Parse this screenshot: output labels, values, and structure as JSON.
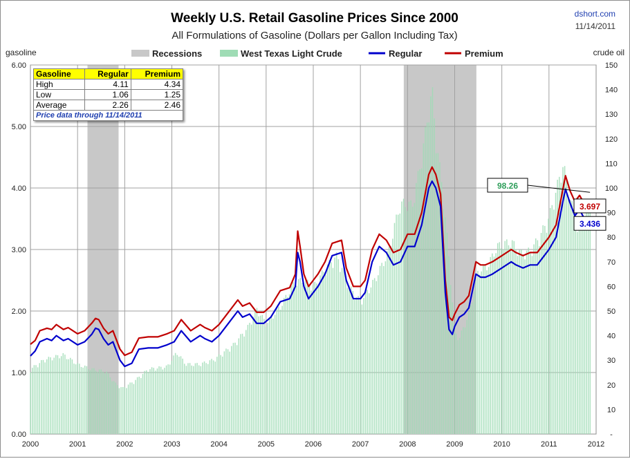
{
  "header": {
    "title": "Weekly U.S. Retail Gasoline Prices Since 2000",
    "subtitle": "All Formulations of Gasoline (Dollars per Gallon Including Tax)",
    "source": "dshort.com",
    "date": "11/14/2011"
  },
  "axes": {
    "left_label": "gasoline",
    "right_label": "crude oil",
    "left_ticks": [
      "0.00",
      "1.00",
      "2.00",
      "3.00",
      "4.00",
      "5.00",
      "6.00"
    ],
    "right_ticks": [
      "-",
      "10",
      "20",
      "30",
      "40",
      "50",
      "60",
      "70",
      "80",
      "90",
      "100",
      "110",
      "120",
      "130",
      "140",
      "150"
    ],
    "x_ticks": [
      "2000",
      "2001",
      "2002",
      "2003",
      "2004",
      "2005",
      "2006",
      "2007",
      "2008",
      "2009",
      "2010",
      "2011",
      "2012"
    ]
  },
  "legend": {
    "recessions": "Recessions",
    "crude": "West Texas Light Crude",
    "regular": "Regular",
    "premium": "Premium"
  },
  "stats": {
    "headers": [
      "Gasoline",
      "Regular",
      "Premium"
    ],
    "rows": [
      {
        "label": "High",
        "regular": "4.11",
        "premium": "4.34"
      },
      {
        "label": "Low",
        "regular": "1.06",
        "premium": "1.25"
      },
      {
        "label": "Average",
        "regular": "2.26",
        "premium": "2.46"
      }
    ],
    "note": "Price data through 11/14/2011"
  },
  "callouts": {
    "crude": "98.26",
    "premium": "3.697",
    "regular": "3.436"
  },
  "colors": {
    "regular": "#0000cc",
    "premium": "#c00000",
    "crude": "#9fdcb5",
    "recession": "#c8c8c8",
    "grid": "#a0a0a0"
  },
  "chart_data": {
    "type": "line",
    "title": "Weekly U.S. Retail Gasoline Prices Since 2000",
    "subtitle": "All Formulations of Gasoline (Dollars per Gallon Including Tax)",
    "xlabel": "",
    "ylabel": "gasoline",
    "y2label": "crude oil",
    "xlim": [
      2000,
      2012
    ],
    "ylim": [
      0,
      6
    ],
    "y2lim": [
      0,
      150
    ],
    "grid": true,
    "legend_position": "top",
    "recessions": [
      [
        2001.21,
        2001.87
      ],
      [
        2007.92,
        2009.46
      ]
    ],
    "series": [
      {
        "name": "Regular",
        "axis": "left",
        "x": [
          2000.0,
          2000.1,
          2000.2,
          2000.35,
          2000.45,
          2000.55,
          2000.7,
          2000.8,
          2001.0,
          2001.15,
          2001.3,
          2001.38,
          2001.45,
          2001.55,
          2001.65,
          2001.75,
          2001.9,
          2002.0,
          2002.15,
          2002.3,
          2002.5,
          2002.7,
          2002.9,
          2003.05,
          2003.2,
          2003.4,
          2003.6,
          2003.7,
          2003.85,
          2004.0,
          2004.2,
          2004.4,
          2004.5,
          2004.65,
          2004.8,
          2004.95,
          2005.1,
          2005.3,
          2005.5,
          2005.62,
          2005.67,
          2005.72,
          2005.8,
          2005.9,
          2006.0,
          2006.1,
          2006.25,
          2006.4,
          2006.6,
          2006.7,
          2006.85,
          2007.0,
          2007.1,
          2007.25,
          2007.4,
          2007.55,
          2007.7,
          2007.85,
          2008.0,
          2008.15,
          2008.3,
          2008.45,
          2008.52,
          2008.6,
          2008.7,
          2008.75,
          2008.8,
          2008.88,
          2008.95,
          2009.0,
          2009.1,
          2009.2,
          2009.3,
          2009.45,
          2009.55,
          2009.65,
          2009.8,
          2010.0,
          2010.2,
          2010.3,
          2010.45,
          2010.6,
          2010.75,
          2010.9,
          2011.0,
          2011.15,
          2011.3,
          2011.35,
          2011.45,
          2011.55,
          2011.65,
          2011.75,
          2011.85,
          2011.87
        ],
        "values": [
          1.27,
          1.35,
          1.5,
          1.55,
          1.52,
          1.6,
          1.52,
          1.55,
          1.45,
          1.5,
          1.62,
          1.72,
          1.7,
          1.55,
          1.45,
          1.5,
          1.2,
          1.1,
          1.15,
          1.38,
          1.4,
          1.4,
          1.45,
          1.5,
          1.68,
          1.5,
          1.6,
          1.55,
          1.5,
          1.6,
          1.8,
          2.0,
          1.9,
          1.95,
          1.8,
          1.8,
          1.9,
          2.15,
          2.2,
          2.4,
          2.95,
          2.8,
          2.4,
          2.2,
          2.3,
          2.4,
          2.6,
          2.9,
          2.95,
          2.5,
          2.2,
          2.2,
          2.3,
          2.8,
          3.05,
          2.95,
          2.75,
          2.8,
          3.05,
          3.05,
          3.4,
          4.0,
          4.11,
          4.0,
          3.7,
          3.0,
          2.3,
          1.7,
          1.62,
          1.75,
          1.9,
          1.95,
          2.05,
          2.6,
          2.55,
          2.55,
          2.6,
          2.7,
          2.8,
          2.75,
          2.7,
          2.75,
          2.75,
          2.9,
          3.0,
          3.2,
          3.8,
          3.98,
          3.75,
          3.55,
          3.65,
          3.5,
          3.45,
          3.436
        ]
      },
      {
        "name": "Premium",
        "axis": "left",
        "x": [
          2000.0,
          2000.1,
          2000.2,
          2000.35,
          2000.45,
          2000.55,
          2000.7,
          2000.8,
          2001.0,
          2001.15,
          2001.3,
          2001.38,
          2001.45,
          2001.55,
          2001.65,
          2001.75,
          2001.9,
          2002.0,
          2002.15,
          2002.3,
          2002.5,
          2002.7,
          2002.9,
          2003.05,
          2003.2,
          2003.4,
          2003.6,
          2003.7,
          2003.85,
          2004.0,
          2004.2,
          2004.4,
          2004.5,
          2004.65,
          2004.8,
          2004.95,
          2005.1,
          2005.3,
          2005.5,
          2005.62,
          2005.67,
          2005.72,
          2005.8,
          2005.9,
          2006.0,
          2006.1,
          2006.25,
          2006.4,
          2006.6,
          2006.7,
          2006.85,
          2007.0,
          2007.1,
          2007.25,
          2007.4,
          2007.55,
          2007.7,
          2007.85,
          2008.0,
          2008.15,
          2008.3,
          2008.45,
          2008.52,
          2008.6,
          2008.7,
          2008.75,
          2008.8,
          2008.88,
          2008.95,
          2009.0,
          2009.1,
          2009.2,
          2009.3,
          2009.45,
          2009.55,
          2009.65,
          2009.8,
          2010.0,
          2010.2,
          2010.3,
          2010.45,
          2010.6,
          2010.75,
          2010.9,
          2011.0,
          2011.15,
          2011.3,
          2011.35,
          2011.45,
          2011.55,
          2011.65,
          2011.75,
          2011.85,
          2011.87
        ],
        "values": [
          1.46,
          1.52,
          1.68,
          1.72,
          1.7,
          1.78,
          1.7,
          1.73,
          1.63,
          1.68,
          1.8,
          1.88,
          1.86,
          1.72,
          1.63,
          1.68,
          1.38,
          1.28,
          1.33,
          1.56,
          1.58,
          1.58,
          1.63,
          1.68,
          1.86,
          1.68,
          1.78,
          1.73,
          1.68,
          1.78,
          1.98,
          2.18,
          2.08,
          2.13,
          1.98,
          1.98,
          2.08,
          2.33,
          2.38,
          2.6,
          3.3,
          3.05,
          2.6,
          2.4,
          2.5,
          2.6,
          2.8,
          3.1,
          3.15,
          2.7,
          2.4,
          2.4,
          2.5,
          3.0,
          3.25,
          3.15,
          2.95,
          3.0,
          3.25,
          3.25,
          3.6,
          4.22,
          4.34,
          4.22,
          3.9,
          3.2,
          2.5,
          1.9,
          1.85,
          1.95,
          2.1,
          2.15,
          2.25,
          2.8,
          2.75,
          2.75,
          2.8,
          2.9,
          3.0,
          2.95,
          2.9,
          2.95,
          2.95,
          3.1,
          3.2,
          3.4,
          4.0,
          4.2,
          3.95,
          3.78,
          3.88,
          3.74,
          3.7,
          3.697
        ]
      },
      {
        "name": "West Texas Light Crude",
        "type": "bar",
        "axis": "right",
        "x": [
          2000.0,
          2000.3,
          2000.7,
          2001.0,
          2001.3,
          2001.6,
          2001.8,
          2001.95,
          2002.2,
          2002.5,
          2002.9,
          2003.1,
          2003.3,
          2003.6,
          2003.9,
          2004.3,
          2004.6,
          2004.8,
          2005.0,
          2005.3,
          2005.6,
          2005.8,
          2006.0,
          2006.3,
          2006.5,
          2006.8,
          2007.0,
          2007.3,
          2007.6,
          2007.8,
          2007.9,
          2008.1,
          2008.3,
          2008.45,
          2008.52,
          2008.6,
          2008.75,
          2008.9,
          2009.0,
          2009.1,
          2009.3,
          2009.5,
          2009.7,
          2009.9,
          2010.2,
          2010.4,
          2010.6,
          2010.8,
          2011.0,
          2011.2,
          2011.3,
          2011.45,
          2011.6,
          2011.75,
          2011.87
        ],
        "values": [
          27,
          31,
          33,
          29,
          27,
          26,
          21,
          19,
          22,
          27,
          28,
          34,
          29,
          29,
          31,
          37,
          44,
          52,
          46,
          53,
          63,
          64,
          61,
          70,
          74,
          60,
          55,
          64,
          76,
          93,
          96,
          95,
          115,
          135,
          143,
          123,
          100,
          68,
          42,
          40,
          50,
          68,
          70,
          78,
          80,
          75,
          76,
          82,
          90,
          105,
          112,
          98,
          85,
          88,
          98.26
        ]
      }
    ]
  }
}
